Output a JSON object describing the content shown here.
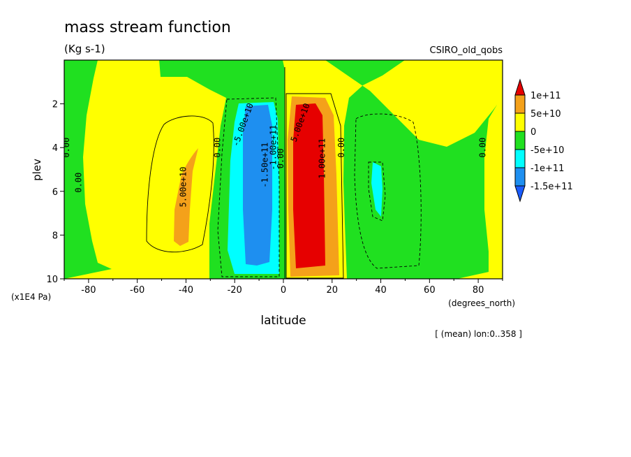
{
  "chart_data": {
    "type": "heatmap",
    "title": "mass stream function",
    "subtitle": "(Kg s-1)",
    "dataset": "CSIRO_old_qobs",
    "xlabel": "latitude",
    "xunits": "(degrees_north)",
    "ylabel": "plev",
    "yunits": "(x1E4 Pa)",
    "footnote": "[ (mean) lon:0..358 ]",
    "xlim": [
      -90,
      90
    ],
    "ylim": [
      10,
      0
    ],
    "x_ticks": [
      -80,
      -60,
      -40,
      -20,
      0,
      20,
      40,
      60,
      80
    ],
    "y_ticks": [
      2,
      4,
      6,
      8,
      10
    ],
    "x_tick_labels": [
      "-80",
      "-60",
      "-40",
      "-20",
      "0",
      "20",
      "40",
      "60",
      "80"
    ],
    "y_tick_labels": [
      "2",
      "4",
      "6",
      "8",
      "10"
    ],
    "colorbar": {
      "labels": [
        "1e+11",
        "5e+10",
        "0",
        "-5e+10",
        "-1e+11",
        "-1.5e+11"
      ],
      "colors": [
        "#e60000",
        "#f4a11a",
        "#ffff00",
        "#20e020",
        "#00ffff",
        "#1e8ff0",
        "#1a5cff"
      ]
    },
    "contour_labels": [
      {
        "text": "5.00e+10",
        "x": -40,
        "y": 5.8,
        "rot": -90
      },
      {
        "text": "0.00",
        "x": -88,
        "y": 4.0,
        "rot": -90
      },
      {
        "text": "0.00",
        "x": -83,
        "y": 5.6,
        "rot": -90
      },
      {
        "text": "0.00",
        "x": -26,
        "y": 4.0,
        "rot": -90
      },
      {
        "text": "-5.00e+10",
        "x": -15.5,
        "y": 3.0,
        "rot": -70
      },
      {
        "text": "-1.50e+11",
        "x": -6.5,
        "y": 4.8,
        "rot": -90
      },
      {
        "text": "-1.00e+11",
        "x": -3,
        "y": 4.0,
        "rot": -90
      },
      {
        "text": "0.00",
        "x": 0,
        "y": 4.5,
        "rot": -90
      },
      {
        "text": "5.00e+10",
        "x": 8,
        "y": 2.9,
        "rot": -70
      },
      {
        "text": "1.00e+11",
        "x": 17,
        "y": 4.5,
        "rot": -90
      },
      {
        "text": "0.00",
        "x": 25,
        "y": 4.0,
        "rot": -90
      },
      {
        "text": "0.00",
        "x": 83,
        "y": 4.0,
        "rot": -90
      }
    ]
  }
}
